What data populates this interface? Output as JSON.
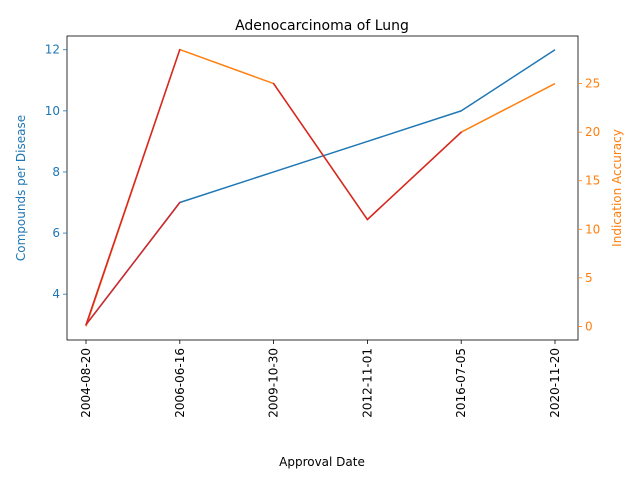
{
  "chart_data": {
    "type": "line",
    "title": "Adenocarcinoma of Lung",
    "xlabel": "Approval Date",
    "ylabel_left": "Compounds per Disease",
    "ylabel_right": "Indication Accuracy",
    "categories": [
      "2004-08-20",
      "2006-06-16",
      "2009-10-30",
      "2012-11-01",
      "2016-07-05",
      "2020-11-20"
    ],
    "series": [
      {
        "axis": "left",
        "color": "#1f77b4",
        "values": [
          3,
          7,
          8,
          9,
          10,
          12
        ]
      },
      {
        "axis": "right",
        "color": "#ff7f0e",
        "values": [
          0,
          28.5,
          25,
          11,
          20,
          25
        ]
      }
    ],
    "highlight": {
      "color": "#d62728",
      "description_segments": [
        [
          0,
          1
        ],
        [
          2,
          3
        ],
        [
          3,
          4
        ]
      ]
    },
    "ylim_left": [
      2.5,
      12.45
    ],
    "ylim_right": [
      -1.4,
      29.9
    ],
    "yticks_left": [
      4,
      6,
      8,
      10,
      12
    ],
    "yticks_right": [
      0,
      5,
      10,
      15,
      20,
      25
    ],
    "left_axis_color": "#1f77b4",
    "right_axis_color": "#ff7f0e",
    "grid": false,
    "legend": "none"
  }
}
